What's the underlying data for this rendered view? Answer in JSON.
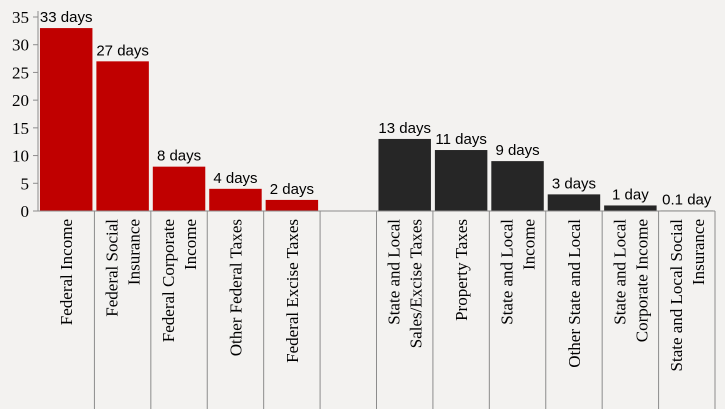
{
  "chart_data": {
    "type": "bar",
    "categories": [
      [
        "Federal Income"
      ],
      [
        "Federal Social",
        "Insurance"
      ],
      [
        "Federal Corporate",
        "Income"
      ],
      [
        "Other Federal Taxes"
      ],
      [
        "Federal Excise Taxes"
      ],
      [],
      [
        "State and Local",
        "Sales/Excise Taxes"
      ],
      [
        "Property Taxes"
      ],
      [
        "State and Local",
        "Income"
      ],
      [
        "Other State and Local"
      ],
      [
        "State and Local",
        "Corporate Income"
      ],
      [
        "State and Local Social",
        "Insurance"
      ]
    ],
    "values": [
      33,
      27,
      8,
      4,
      2,
      null,
      13,
      11,
      9,
      3,
      1,
      0.1
    ],
    "data_labels": [
      "33 days",
      "27 days",
      "8 days",
      "4 days",
      "2 days",
      "",
      "13 days",
      "11 days",
      "9 days",
      "3 days",
      "1 day",
      "0.1 day"
    ],
    "groups": [
      "federal",
      "federal",
      "federal",
      "federal",
      "federal",
      "",
      "state",
      "state",
      "state",
      "state",
      "state",
      "state"
    ],
    "yticks": [
      0,
      5,
      10,
      15,
      20,
      25,
      30,
      35
    ],
    "ylim": [
      0,
      35
    ],
    "title": "",
    "xlabel": "",
    "ylabel": "",
    "grid": false,
    "colors": {
      "federal": "#c00000",
      "state": "#262626",
      "axis": "#8c8c8c",
      "background": "#f3f2f0"
    }
  }
}
